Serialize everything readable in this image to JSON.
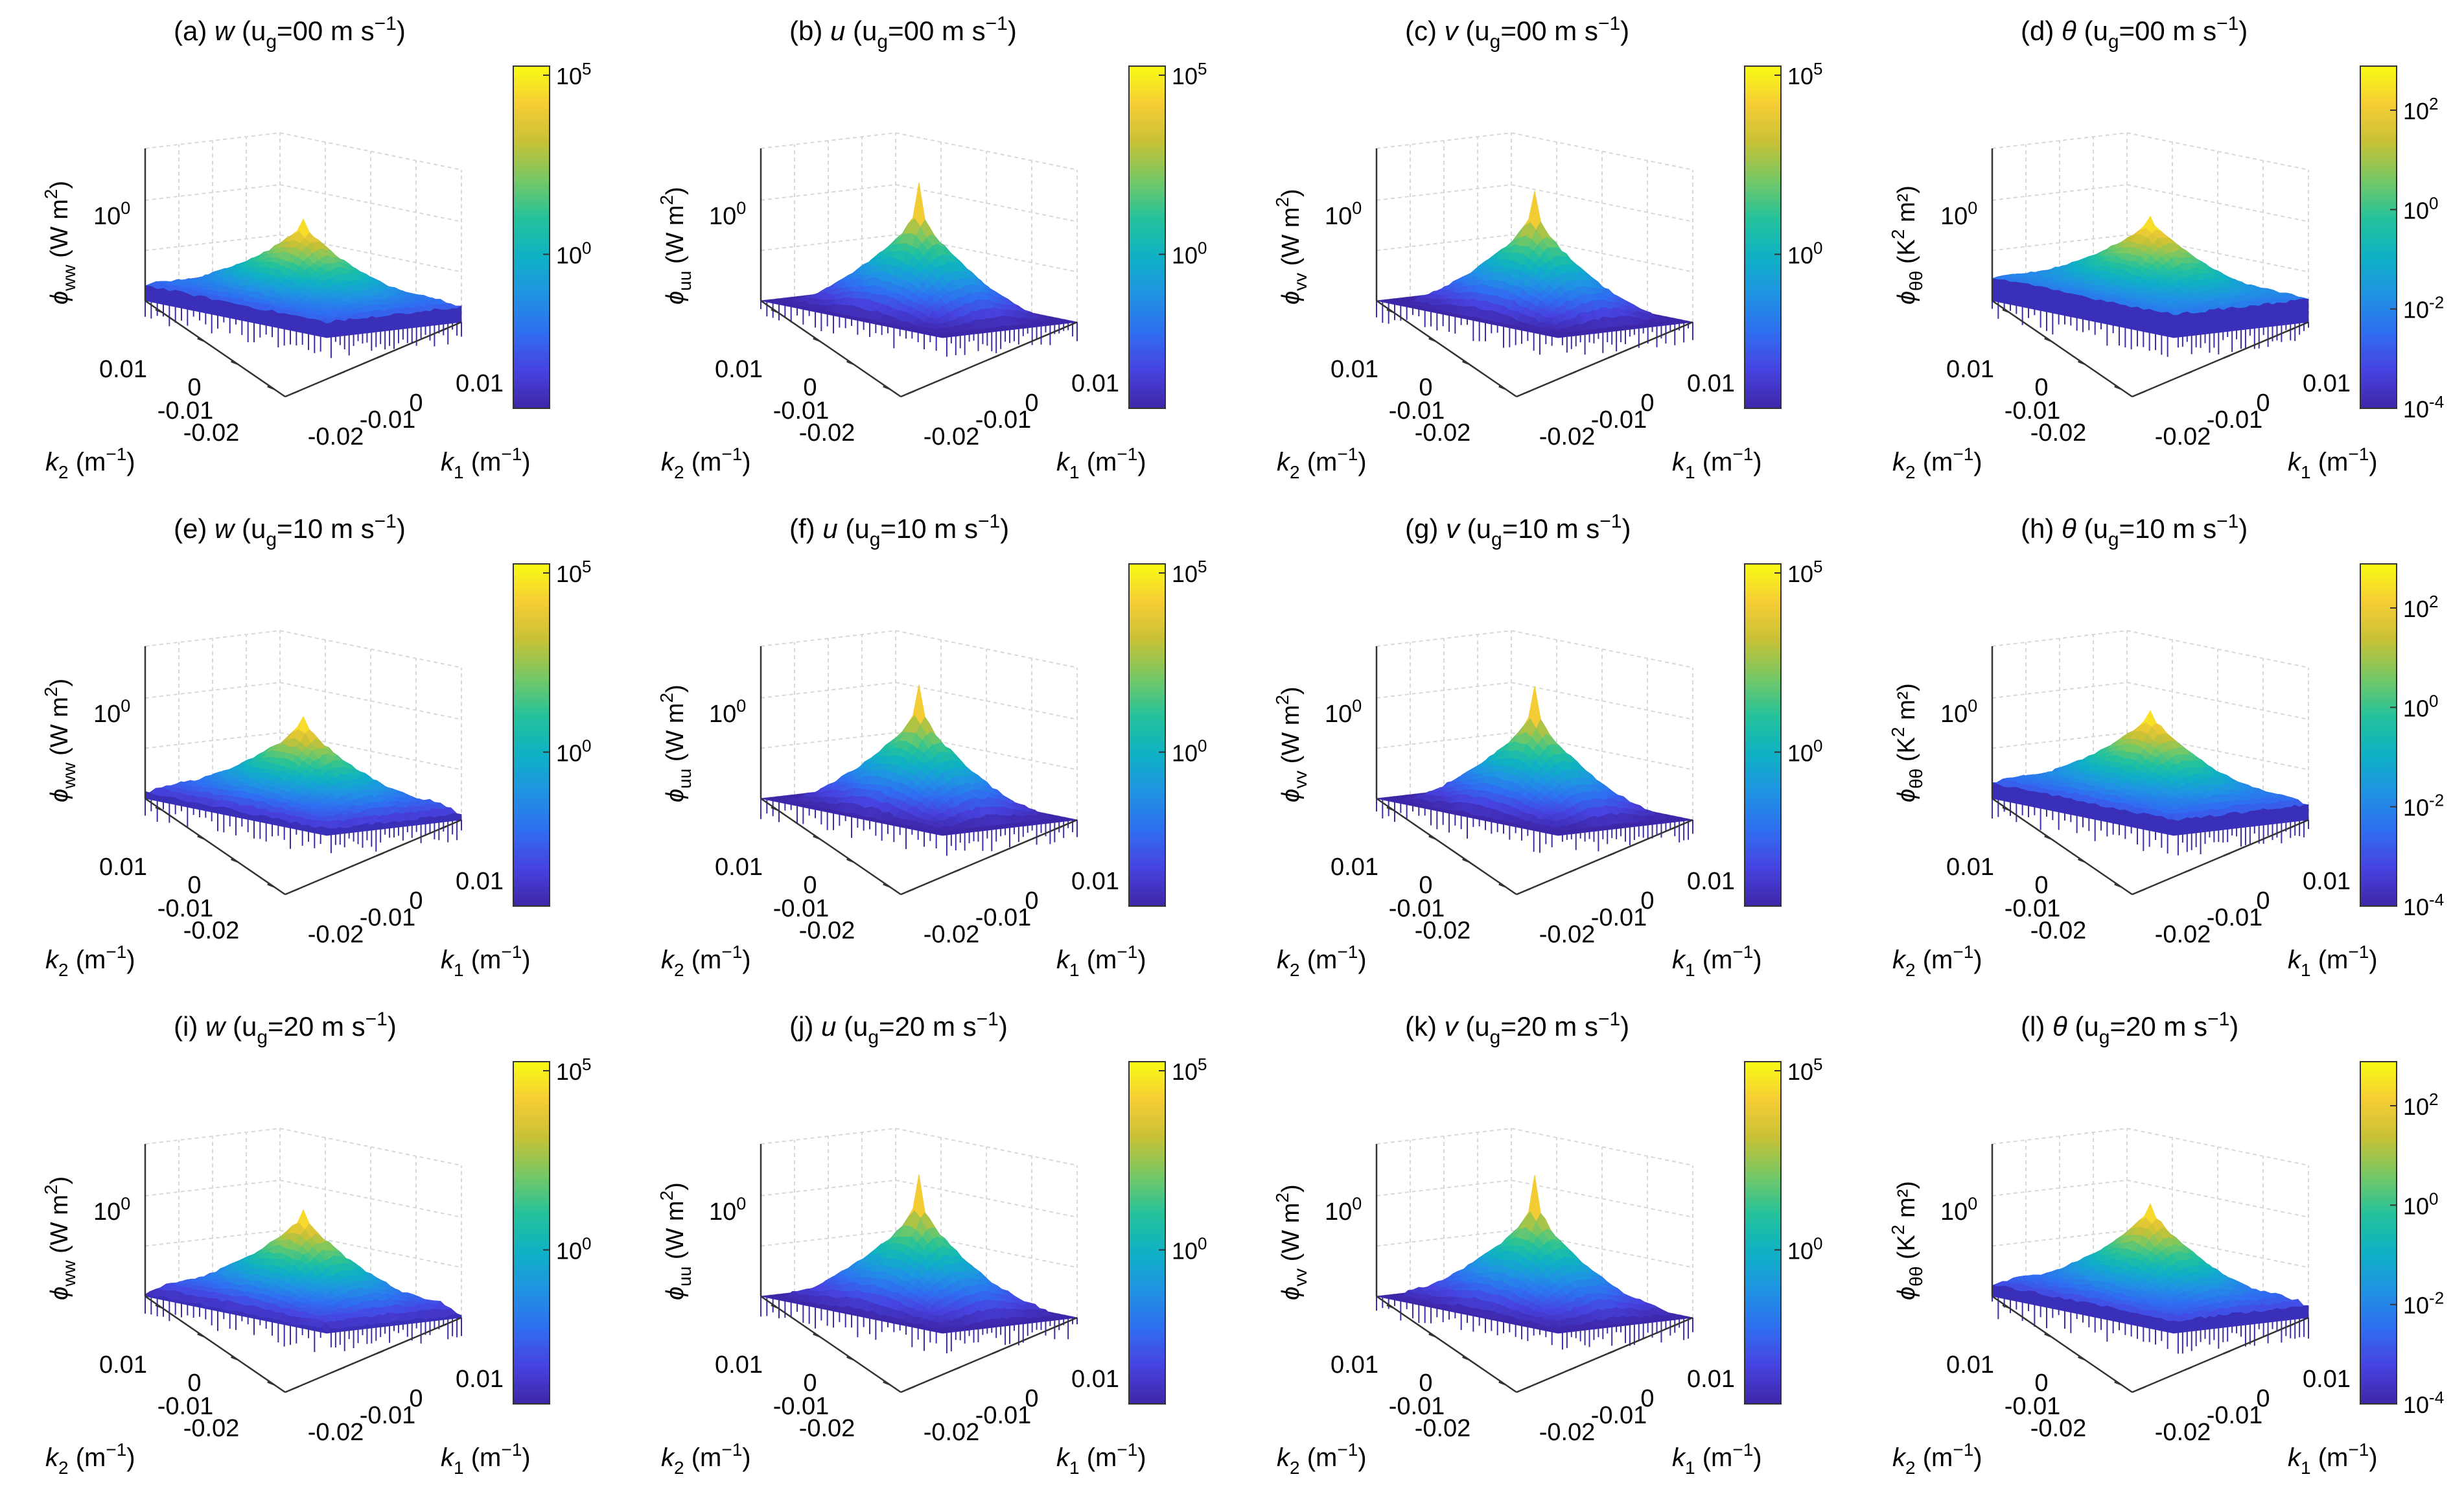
{
  "colors": {
    "colormap": [
      "#3e26a8",
      "#4743e0",
      "#2f6ef1",
      "#1f94e3",
      "#0fb1c4",
      "#25c29a",
      "#76c865",
      "#c8c136",
      "#f6cd35",
      "#f9fb15"
    ],
    "grid": "#d8d8d8",
    "axis": "#333333"
  },
  "chart_data": [
    {
      "type": "surface",
      "panel_label": "(a)",
      "variable": "w",
      "speed": "00",
      "unit_tail": "m s",
      "exp": "−1",
      "zlabel_main": "ϕ",
      "zlabel_sub": "ww",
      "zlabel_unit": "(W m",
      "zlabel_unit_exp": "2",
      "zlabel_close": ")",
      "z_tick": "10",
      "z_tick_exp": "0",
      "xlabel_main": "k",
      "xlabel_sub": "1",
      "xlabel_unit": "(m",
      "xlabel_exp": "−1",
      "ylabel_main": "k",
      "ylabel_sub": "2",
      "ylabel_unit": "(m",
      "ylabel_exp": "−1",
      "x_ticks": [
        "-0.02",
        "-0.01",
        "0",
        "0.01"
      ],
      "y_ticks": [
        "0.01",
        "0",
        "-0.01",
        "-0.02"
      ],
      "colorbar_ticks": [
        {
          "base": "10",
          "exp": "5"
        },
        {
          "base": "10",
          "exp": "0"
        }
      ],
      "shape": {
        "peak": 0.55,
        "spike": 0.05,
        "edge": 0.16,
        "droop": 0.06
      }
    },
    {
      "type": "surface",
      "panel_label": "(b)",
      "variable": "u",
      "speed": "00",
      "unit_tail": "m s",
      "exp": "−1",
      "zlabel_main": "ϕ",
      "zlabel_sub": "uu",
      "zlabel_unit": "(W m",
      "zlabel_unit_exp": "2",
      "zlabel_close": ")",
      "z_tick": "10",
      "z_tick_exp": "0",
      "xlabel_main": "k",
      "xlabel_sub": "1",
      "xlabel_unit": "(m",
      "xlabel_exp": "−1",
      "ylabel_main": "k",
      "ylabel_sub": "2",
      "ylabel_unit": "(m",
      "ylabel_exp": "−1",
      "x_ticks": [
        "-0.02",
        "-0.01",
        "0",
        "0.01"
      ],
      "y_ticks": [
        "0.01",
        "0",
        "-0.01",
        "-0.02"
      ],
      "colorbar_ticks": [
        {
          "base": "10",
          "exp": "5"
        },
        {
          "base": "10",
          "exp": "0"
        }
      ],
      "shape": {
        "peak": 0.62,
        "spike": 0.22,
        "edge": 0.08,
        "droop": 0.24
      }
    },
    {
      "type": "surface",
      "panel_label": "(c)",
      "variable": "v",
      "speed": "00",
      "unit_tail": "m s",
      "exp": "−1",
      "zlabel_main": "ϕ",
      "zlabel_sub": "vv",
      "zlabel_unit": "(W m",
      "zlabel_unit_exp": "2",
      "zlabel_close": ")",
      "z_tick": "10",
      "z_tick_exp": "0",
      "xlabel_main": "k",
      "xlabel_sub": "1",
      "xlabel_unit": "(m",
      "xlabel_exp": "−1",
      "ylabel_main": "k",
      "ylabel_sub": "2",
      "ylabel_unit": "(m",
      "ylabel_exp": "−1",
      "x_ticks": [
        "-0.02",
        "-0.01",
        "0",
        "0.01"
      ],
      "y_ticks": [
        "0.01",
        "0",
        "-0.01",
        "-0.02"
      ],
      "colorbar_ticks": [
        {
          "base": "10",
          "exp": "5"
        },
        {
          "base": "10",
          "exp": "0"
        }
      ],
      "shape": {
        "peak": 0.6,
        "spike": 0.2,
        "edge": 0.08,
        "droop": 0.24
      }
    },
    {
      "type": "surface",
      "panel_label": "(d)",
      "variable": "θ",
      "speed": "00",
      "unit_tail": "m s",
      "exp": "−1",
      "zlabel_main": "ϕ",
      "zlabel_sub": "θθ",
      "zlabel_unit": "(K",
      "zlabel_unit_exp": "2",
      "zlabel_close": " m²)",
      "z_tick": "10",
      "z_tick_exp": "0",
      "xlabel_main": "k",
      "xlabel_sub": "1",
      "xlabel_unit": "(m",
      "xlabel_exp": "−1",
      "ylabel_main": "k",
      "ylabel_sub": "2",
      "ylabel_unit": "(m",
      "ylabel_exp": "−1",
      "x_ticks": [
        "-0.02",
        "-0.01",
        "0",
        "0.01"
      ],
      "y_ticks": [
        "0.01",
        "0",
        "-0.01",
        "-0.02"
      ],
      "colorbar_ticks": [
        {
          "base": "10",
          "exp": "2"
        },
        {
          "base": "10",
          "exp": "0"
        },
        {
          "base": "10",
          "exp": "-2"
        },
        {
          "base": "10",
          "exp": "-4"
        }
      ],
      "shape": {
        "peak": 0.58,
        "spike": 0.04,
        "edge": 0.2,
        "droop": 0.05
      }
    },
    {
      "type": "surface",
      "panel_label": "(e)",
      "variable": "w",
      "speed": "10",
      "unit_tail": "m s",
      "exp": "−1",
      "zlabel_main": "ϕ",
      "zlabel_sub": "ww",
      "zlabel_unit": "(W m",
      "zlabel_unit_exp": "2",
      "zlabel_close": ")",
      "z_tick": "10",
      "z_tick_exp": "0",
      "xlabel_main": "k",
      "xlabel_sub": "1",
      "xlabel_unit": "(m",
      "xlabel_exp": "−1",
      "ylabel_main": "k",
      "ylabel_sub": "2",
      "ylabel_unit": "(m",
      "ylabel_exp": "−1",
      "x_ticks": [
        "-0.02",
        "-0.01",
        "0",
        "0.01"
      ],
      "y_ticks": [
        "0.01",
        "0",
        "-0.01",
        "-0.02"
      ],
      "colorbar_ticks": [
        {
          "base": "10",
          "exp": "5"
        },
        {
          "base": "10",
          "exp": "0"
        }
      ],
      "shape": {
        "peak": 0.55,
        "spike": 0.06,
        "edge": 0.14,
        "droop": 0.1
      }
    },
    {
      "type": "surface",
      "panel_label": "(f)",
      "variable": "u",
      "speed": "10",
      "unit_tail": "m s",
      "exp": "−1",
      "zlabel_main": "ϕ",
      "zlabel_sub": "uu",
      "zlabel_unit": "(W m",
      "zlabel_unit_exp": "2",
      "zlabel_close": ")",
      "z_tick": "10",
      "z_tick_exp": "0",
      "xlabel_main": "k",
      "xlabel_sub": "1",
      "xlabel_unit": "(m",
      "xlabel_exp": "−1",
      "ylabel_main": "k",
      "ylabel_sub": "2",
      "ylabel_unit": "(m",
      "ylabel_exp": "−1",
      "x_ticks": [
        "-0.02",
        "-0.01",
        "0",
        "0.01"
      ],
      "y_ticks": [
        "0.01",
        "0",
        "-0.01",
        "-0.02"
      ],
      "colorbar_ticks": [
        {
          "base": "10",
          "exp": "5"
        },
        {
          "base": "10",
          "exp": "0"
        }
      ],
      "shape": {
        "peak": 0.62,
        "spike": 0.2,
        "edge": 0.08,
        "droop": 0.24
      }
    },
    {
      "type": "surface",
      "panel_label": "(g)",
      "variable": "v",
      "speed": "10",
      "unit_tail": "m s",
      "exp": "−1",
      "zlabel_main": "ϕ",
      "zlabel_sub": "vv",
      "zlabel_unit": "(W m",
      "zlabel_unit_exp": "2",
      "zlabel_close": ")",
      "z_tick": "10",
      "z_tick_exp": "0",
      "xlabel_main": "k",
      "xlabel_sub": "1",
      "xlabel_unit": "(m",
      "xlabel_exp": "−1",
      "ylabel_main": "k",
      "ylabel_sub": "2",
      "ylabel_unit": "(m",
      "ylabel_exp": "−1",
      "x_ticks": [
        "-0.02",
        "-0.01",
        "0",
        "0.01"
      ],
      "y_ticks": [
        "0.01",
        "0",
        "-0.01",
        "-0.02"
      ],
      "colorbar_ticks": [
        {
          "base": "10",
          "exp": "5"
        },
        {
          "base": "10",
          "exp": "0"
        }
      ],
      "shape": {
        "peak": 0.6,
        "spike": 0.2,
        "edge": 0.08,
        "droop": 0.22
      }
    },
    {
      "type": "surface",
      "panel_label": "(h)",
      "variable": "θ",
      "speed": "10",
      "unit_tail": "m s",
      "exp": "−1",
      "zlabel_main": "ϕ",
      "zlabel_sub": "θθ",
      "zlabel_unit": "(K",
      "zlabel_unit_exp": "2",
      "zlabel_close": " m²)",
      "z_tick": "10",
      "z_tick_exp": "0",
      "xlabel_main": "k",
      "xlabel_sub": "1",
      "xlabel_unit": "(m",
      "xlabel_exp": "−1",
      "ylabel_main": "k",
      "ylabel_sub": "2",
      "ylabel_unit": "(m",
      "ylabel_exp": "−1",
      "x_ticks": [
        "-0.02",
        "-0.01",
        "0",
        "0.01"
      ],
      "y_ticks": [
        "0.01",
        "0",
        "-0.01",
        "-0.02"
      ],
      "colorbar_ticks": [
        {
          "base": "10",
          "exp": "2"
        },
        {
          "base": "10",
          "exp": "0"
        },
        {
          "base": "10",
          "exp": "-2"
        },
        {
          "base": "10",
          "exp": "-4"
        }
      ],
      "shape": {
        "peak": 0.6,
        "spike": 0.04,
        "edge": 0.18,
        "droop": 0.08
      }
    },
    {
      "type": "surface",
      "panel_label": "(i)",
      "variable": "w",
      "speed": "20",
      "unit_tail": "m s",
      "exp": "−1",
      "zlabel_main": "ϕ",
      "zlabel_sub": "ww",
      "zlabel_unit": "(W m",
      "zlabel_unit_exp": "2",
      "zlabel_close": ")",
      "z_tick": "10",
      "z_tick_exp": "0",
      "xlabel_main": "k",
      "xlabel_sub": "1",
      "xlabel_unit": "(m",
      "xlabel_exp": "−1",
      "ylabel_main": "k",
      "ylabel_sub": "2",
      "ylabel_unit": "(m",
      "ylabel_exp": "−1",
      "x_ticks": [
        "-0.02",
        "-0.01",
        "0",
        "0.01"
      ],
      "y_ticks": [
        "0.01",
        "0",
        "-0.01",
        "-0.02"
      ],
      "colorbar_ticks": [
        {
          "base": "10",
          "exp": "5"
        },
        {
          "base": "10",
          "exp": "0"
        }
      ],
      "shape": {
        "peak": 0.58,
        "spike": 0.06,
        "edge": 0.14,
        "droop": 0.12
      }
    },
    {
      "type": "surface",
      "panel_label": "(j)",
      "variable": "u",
      "speed": "20",
      "unit_tail": "m s",
      "exp": "−1",
      "zlabel_main": "ϕ",
      "zlabel_sub": "uu",
      "zlabel_unit": "(W m",
      "zlabel_unit_exp": "2",
      "zlabel_close": ")",
      "z_tick": "10",
      "z_tick_exp": "0",
      "xlabel_main": "k",
      "xlabel_sub": "1",
      "xlabel_unit": "(m",
      "xlabel_exp": "−1",
      "ylabel_main": "k",
      "ylabel_sub": "2",
      "ylabel_unit": "(m",
      "ylabel_exp": "−1",
      "x_ticks": [
        "-0.02",
        "-0.01",
        "0",
        "0.01"
      ],
      "y_ticks": [
        "0.01",
        "0",
        "-0.01",
        "-0.02"
      ],
      "colorbar_ticks": [
        {
          "base": "10",
          "exp": "5"
        },
        {
          "base": "10",
          "exp": "0"
        }
      ],
      "shape": {
        "peak": 0.64,
        "spike": 0.22,
        "edge": 0.1,
        "droop": 0.22
      }
    },
    {
      "type": "surface",
      "panel_label": "(k)",
      "variable": "v",
      "speed": "20",
      "unit_tail": "m s",
      "exp": "−1",
      "zlabel_main": "ϕ",
      "zlabel_sub": "vv",
      "zlabel_unit": "(W m",
      "zlabel_unit_exp": "2",
      "zlabel_close": ")",
      "z_tick": "10",
      "z_tick_exp": "0",
      "xlabel_main": "k",
      "xlabel_sub": "1",
      "xlabel_unit": "(m",
      "xlabel_exp": "−1",
      "ylabel_main": "k",
      "ylabel_sub": "2",
      "ylabel_unit": "(m",
      "ylabel_exp": "−1",
      "x_ticks": [
        "-0.02",
        "-0.01",
        "0",
        "0.01"
      ],
      "y_ticks": [
        "0.01",
        "0",
        "-0.01",
        "-0.02"
      ],
      "colorbar_ticks": [
        {
          "base": "10",
          "exp": "5"
        },
        {
          "base": "10",
          "exp": "0"
        }
      ],
      "shape": {
        "peak": 0.62,
        "spike": 0.24,
        "edge": 0.1,
        "droop": 0.2
      }
    },
    {
      "type": "surface",
      "panel_label": "(l)",
      "variable": "θ",
      "speed": "20",
      "unit_tail": "m s",
      "exp": "−1",
      "zlabel_main": "ϕ",
      "zlabel_sub": "θθ",
      "zlabel_unit": "(K",
      "zlabel_unit_exp": "2",
      "zlabel_close": " m²)",
      "z_tick": "10",
      "z_tick_exp": "0",
      "xlabel_main": "k",
      "xlabel_sub": "1",
      "xlabel_unit": "(m",
      "xlabel_exp": "−1",
      "ylabel_main": "k",
      "ylabel_sub": "2",
      "ylabel_unit": "(m",
      "ylabel_exp": "−1",
      "x_ticks": [
        "-0.02",
        "-0.01",
        "0",
        "0.01"
      ],
      "y_ticks": [
        "0.01",
        "0",
        "-0.01",
        "-0.02"
      ],
      "colorbar_ticks": [
        {
          "base": "10",
          "exp": "2"
        },
        {
          "base": "10",
          "exp": "0"
        },
        {
          "base": "10",
          "exp": "-2"
        },
        {
          "base": "10",
          "exp": "-4"
        }
      ],
      "shape": {
        "peak": 0.62,
        "spike": 0.06,
        "edge": 0.16,
        "droop": 0.08
      }
    }
  ]
}
